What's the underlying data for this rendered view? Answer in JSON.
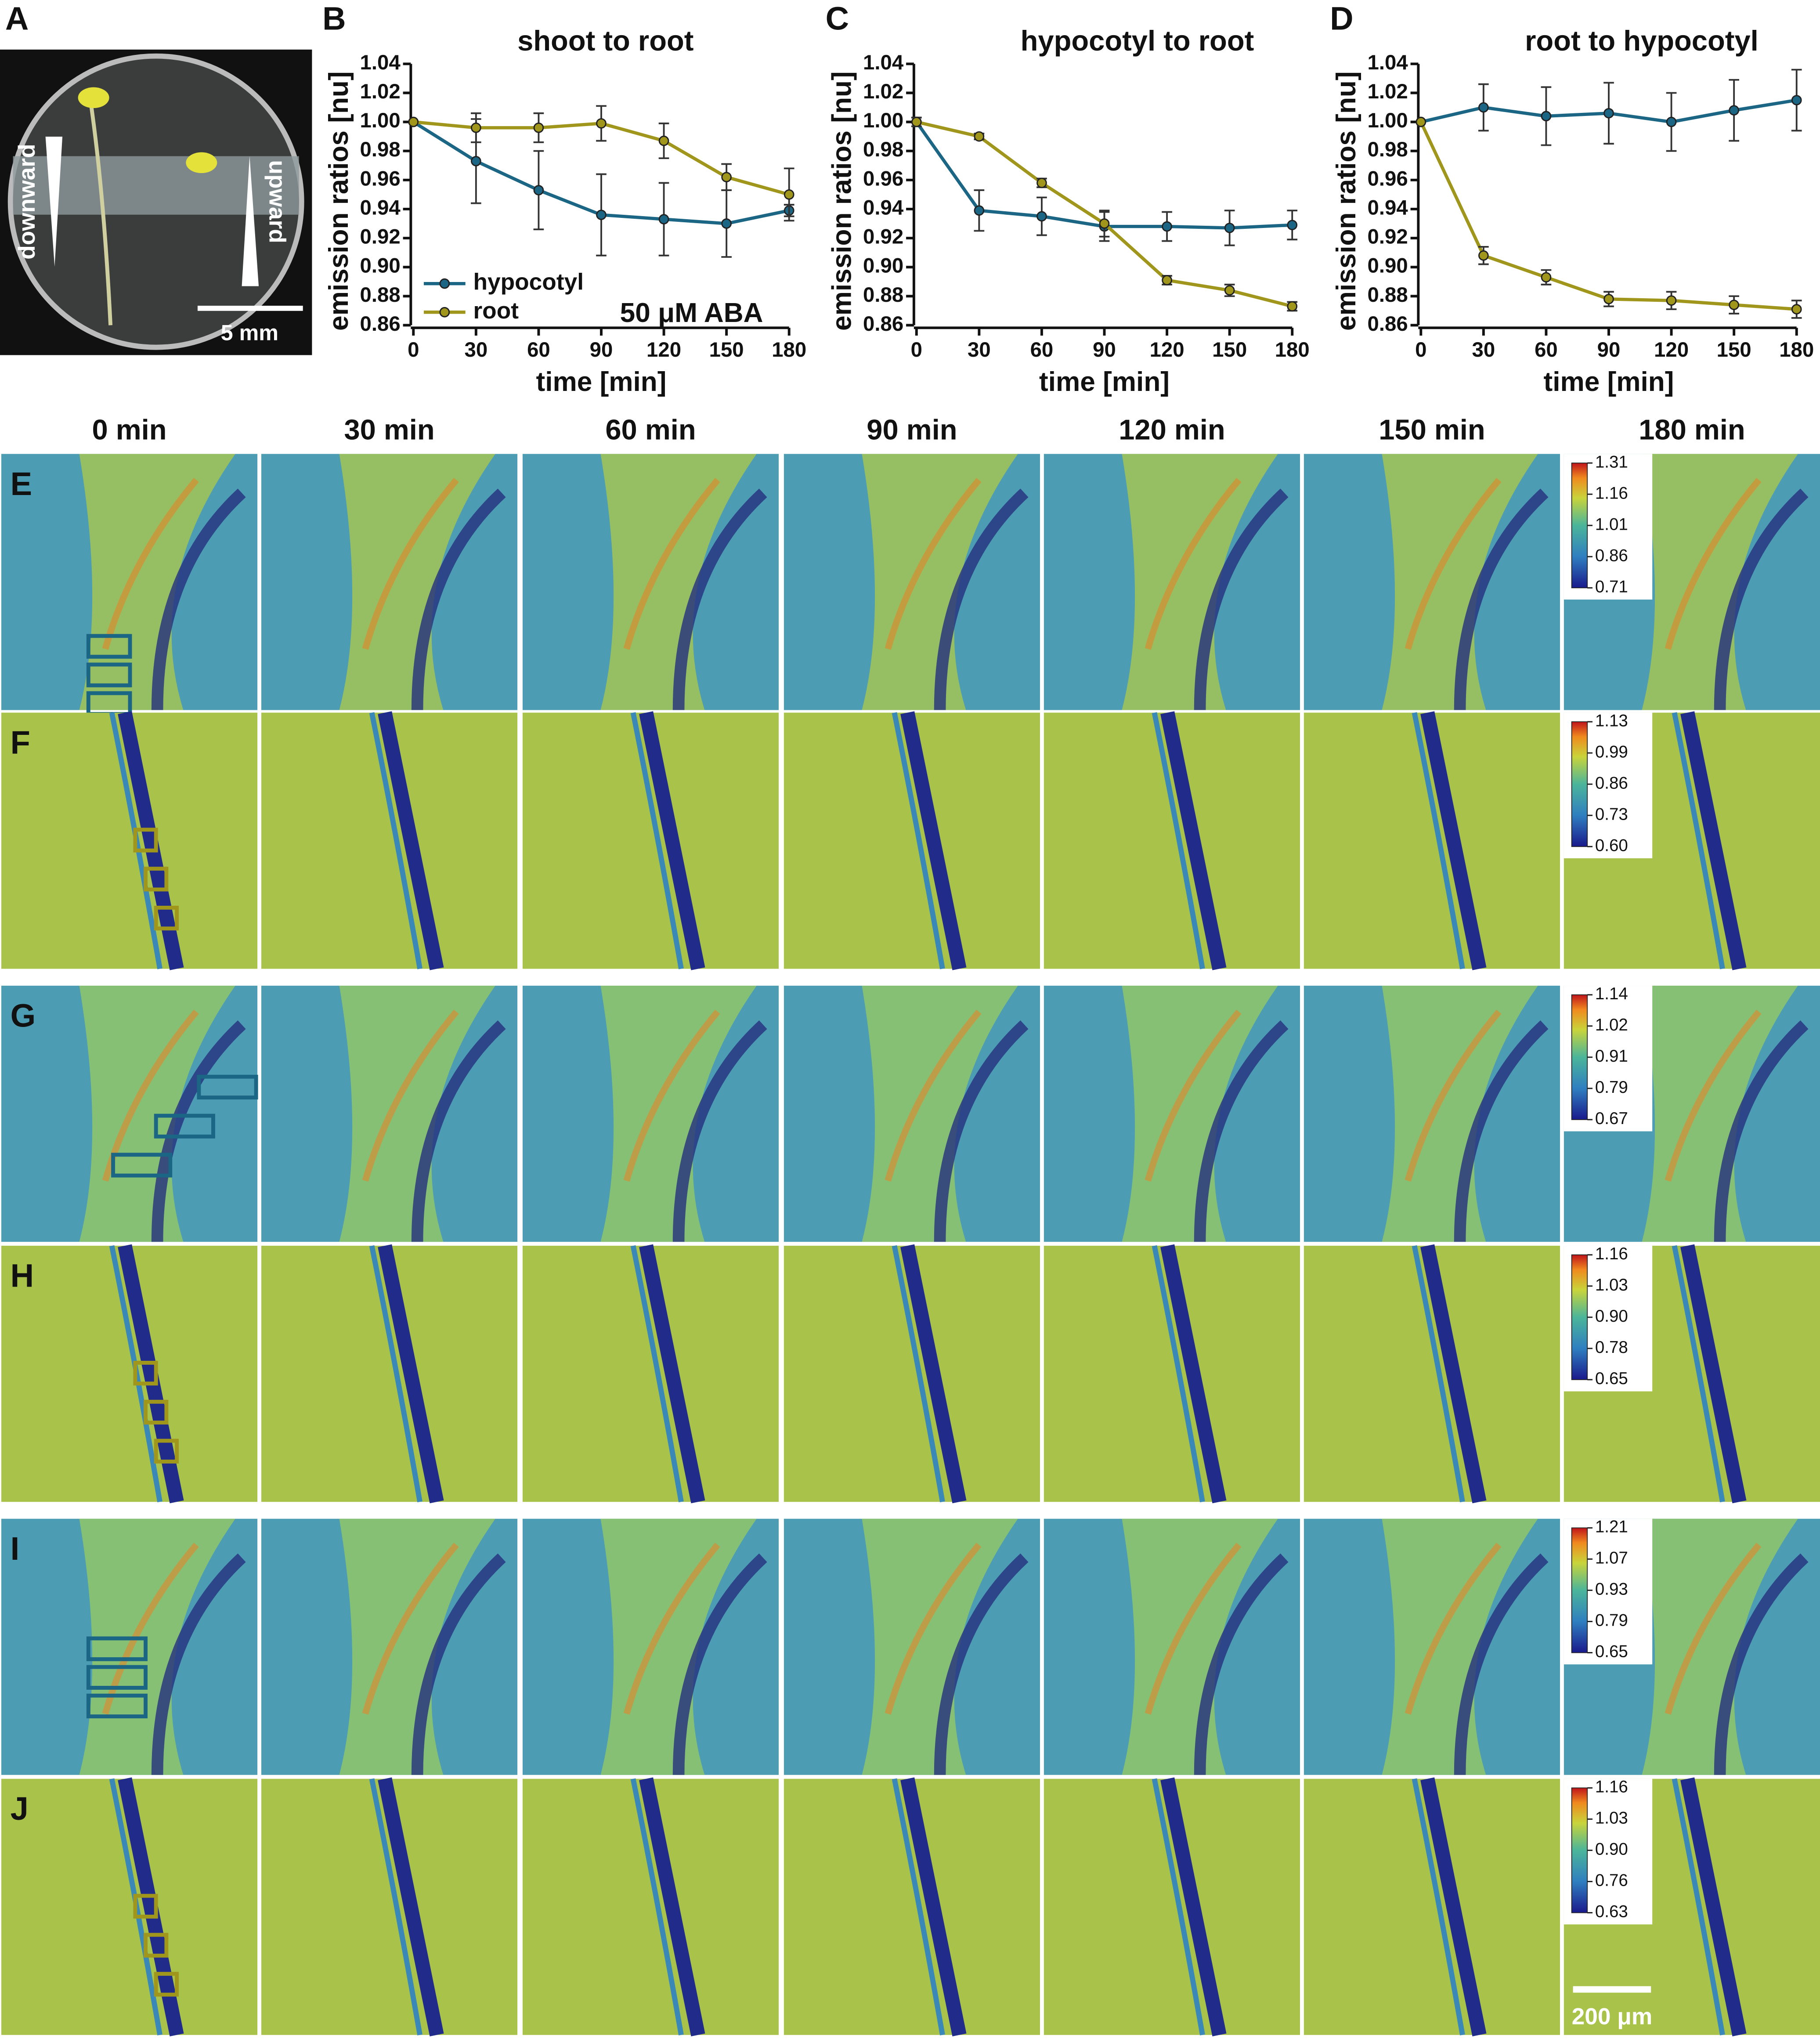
{
  "panel_a": {
    "label": "A",
    "left_text": "downward",
    "right_text": "upward",
    "scale_bar": "5 mm"
  },
  "chart_data": [
    {
      "type": "line",
      "panel_label": "B",
      "title": "shoot to root",
      "x_label": "time [min]",
      "y_label": "emission ratios [nu]",
      "annotation": "50 μM ABA",
      "x": [
        0,
        30,
        60,
        90,
        120,
        150,
        180
      ],
      "xlim": [
        0,
        180
      ],
      "xticks": [
        0,
        30,
        60,
        90,
        120,
        150,
        180
      ],
      "ylim": [
        0.86,
        1.04
      ],
      "yticks": [
        0.86,
        0.88,
        {
          "value": 0.9,
          "label": "0.90"
        },
        0.92,
        0.94,
        0.96,
        0.98,
        {
          "value": 1,
          "label": "1.00"
        },
        1.02,
        1.04
      ],
      "series": [
        {
          "name": "hypocotyl",
          "color": "#1b6585",
          "values": [
            1.0,
            0.973,
            0.953,
            0.936,
            0.933,
            0.93,
            0.939
          ],
          "errors": [
            0,
            0.029,
            0.027,
            0.028,
            0.025,
            0.023,
            0.004
          ]
        },
        {
          "name": "root",
          "color": "#a0961c",
          "values": [
            1.0,
            0.996,
            0.996,
            0.999,
            0.987,
            0.962,
            0.95
          ],
          "errors": [
            0,
            0.01,
            0.01,
            0.012,
            0.012,
            0.009,
            0.018
          ]
        }
      ]
    },
    {
      "type": "line",
      "panel_label": "C",
      "title": "hypocotyl to root",
      "x_label": "time [min]",
      "y_label": "emission ratios [nu]",
      "x": [
        0,
        30,
        60,
        90,
        120,
        150,
        180
      ],
      "xlim": [
        0,
        180
      ],
      "xticks": [
        0,
        30,
        60,
        90,
        120,
        150,
        180
      ],
      "ylim": [
        0.86,
        1.04
      ],
      "yticks": [
        0.86,
        0.88,
        {
          "value": 0.9,
          "label": "0.90"
        },
        0.92,
        0.94,
        0.96,
        0.98,
        {
          "value": 1,
          "label": "1.00"
        },
        1.02,
        1.04
      ],
      "series": [
        {
          "color": "#1b6585",
          "values": [
            1.0,
            0.939,
            0.935,
            0.928,
            0.928,
            0.927,
            0.929
          ],
          "errors": [
            0.003,
            0.014,
            0.013,
            0.01,
            0.01,
            0.012,
            0.01
          ]
        },
        {
          "color": "#a0961c",
          "values": [
            1.0,
            0.99,
            0.958,
            0.93,
            0.891,
            0.884,
            0.873
          ],
          "errors": [
            0.003,
            0.002,
            0.003,
            0.009,
            0.003,
            0.004,
            0.003
          ]
        }
      ]
    },
    {
      "type": "line",
      "panel_label": "D",
      "title": "root to hypocotyl",
      "x_label": "time [min]",
      "y_label": "emission ratios [nu]",
      "x": [
        0,
        30,
        60,
        90,
        120,
        150,
        180
      ],
      "xlim": [
        0,
        180
      ],
      "xticks": [
        0,
        30,
        60,
        90,
        120,
        150,
        180
      ],
      "ylim": [
        0.86,
        1.04
      ],
      "yticks": [
        0.86,
        0.88,
        {
          "value": 0.9,
          "label": "0.90"
        },
        0.92,
        0.94,
        0.96,
        0.98,
        {
          "value": 1,
          "label": "1.00"
        },
        1.02,
        1.04
      ],
      "series": [
        {
          "color": "#1b6585",
          "values": [
            1.0,
            1.01,
            1.004,
            1.006,
            1.0,
            1.008,
            1.015
          ],
          "errors": [
            0,
            0.016,
            0.02,
            0.021,
            0.02,
            0.021,
            0.021
          ]
        },
        {
          "color": "#a0961c",
          "values": [
            1.0,
            0.908,
            0.893,
            0.878,
            0.877,
            0.874,
            0.871
          ],
          "errors": [
            0,
            0.006,
            0.005,
            0.005,
            0.006,
            0.006,
            0.006
          ]
        }
      ]
    }
  ],
  "image_grid": {
    "column_labels": [
      "0 min",
      "30 min",
      "60 min",
      "90 min",
      "120 min",
      "150 min",
      "180 min"
    ],
    "rows": [
      {
        "label": "E",
        "colorbar_ticks": [
          "1.31",
          "1.16",
          "1.01",
          "0.86",
          "0.71"
        ]
      },
      {
        "label": "F",
        "colorbar_ticks": [
          "1.13",
          "0.99",
          "0.86",
          "0.73",
          "0.60"
        ]
      },
      {
        "label": "G",
        "colorbar_ticks": [
          "1.14",
          "1.02",
          "0.91",
          "0.79",
          "0.67"
        ]
      },
      {
        "label": "H",
        "colorbar_ticks": [
          "1.16",
          "1.03",
          "0.90",
          "0.78",
          "0.65"
        ]
      },
      {
        "label": "I",
        "colorbar_ticks": [
          "1.21",
          "1.07",
          "0.93",
          "0.79",
          "0.65"
        ]
      },
      {
        "label": "J",
        "colorbar_ticks": [
          "1.16",
          "1.03",
          "0.90",
          "0.76",
          "0.63"
        ]
      }
    ],
    "scale_bar": "200 μm"
  }
}
